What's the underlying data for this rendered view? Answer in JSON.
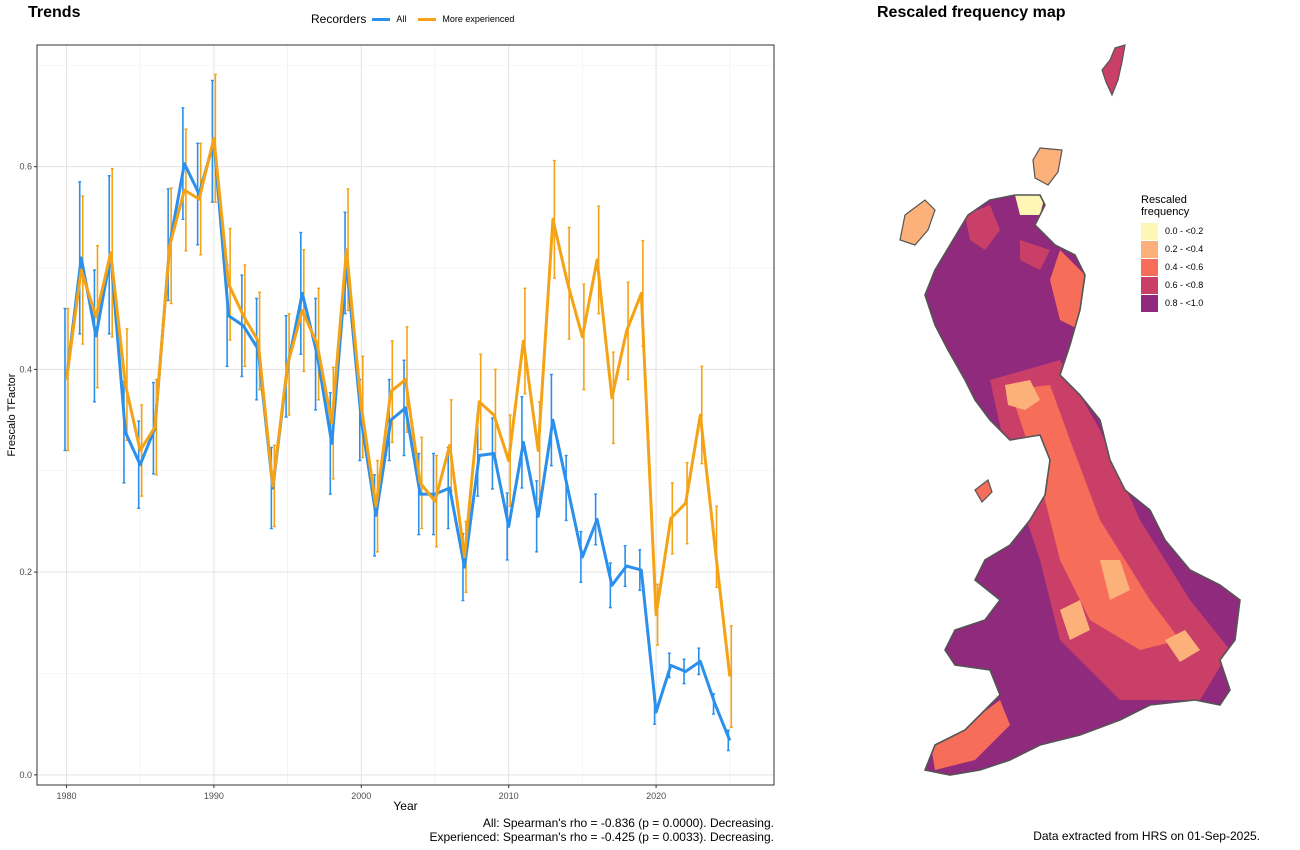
{
  "trends_title": "Trends",
  "map_title": "Rescaled frequency map",
  "legend": {
    "title": "Recorders",
    "items": [
      {
        "label": "All",
        "color": "#2b8fec"
      },
      {
        "label": "More experienced",
        "color": "#f5a316"
      }
    ]
  },
  "chart_data": {
    "type": "line",
    "xlabel": "Year",
    "ylabel": "Frescalo TFactor",
    "xlim": [
      1978,
      2028
    ],
    "ylim": [
      -0.01,
      0.72
    ],
    "x_ticks": [
      1980,
      1990,
      2000,
      2010,
      2020
    ],
    "y_ticks": [
      0.0,
      0.2,
      0.4,
      0.6
    ],
    "grid": true,
    "legend_position": "top",
    "x": [
      1980,
      1981,
      1982,
      1983,
      1984,
      1985,
      1986,
      1987,
      1988,
      1989,
      1990,
      1991,
      1992,
      1993,
      1994,
      1995,
      1996,
      1997,
      1998,
      1999,
      2000,
      2001,
      2002,
      2003,
      2004,
      2005,
      2006,
      2007,
      2008,
      2009,
      2010,
      2011,
      2012,
      2013,
      2014,
      2015,
      2016,
      2017,
      2018,
      2019,
      2020,
      2021,
      2022,
      2023,
      2024,
      2025
    ],
    "series": [
      {
        "name": "All",
        "color": "#2b8fec",
        "values": [
          0.39,
          0.51,
          0.433,
          0.513,
          0.338,
          0.306,
          0.342,
          0.523,
          0.603,
          0.573,
          0.625,
          0.453,
          0.443,
          0.42,
          0.283,
          0.403,
          0.475,
          0.415,
          0.327,
          0.505,
          0.35,
          0.256,
          0.35,
          0.362,
          0.277,
          0.277,
          0.283,
          0.205,
          0.315,
          0.317,
          0.245,
          0.328,
          0.255,
          0.35,
          0.283,
          0.215,
          0.252,
          0.187,
          0.206,
          0.202,
          0.062,
          0.108,
          0.102,
          0.112,
          0.07,
          0.034
        ],
        "err": [
          0.07,
          0.075,
          0.065,
          0.078,
          0.05,
          0.043,
          0.045,
          0.055,
          0.055,
          0.05,
          0.06,
          0.05,
          0.05,
          0.05,
          0.04,
          0.05,
          0.06,
          0.055,
          0.05,
          0.05,
          0.04,
          0.04,
          0.04,
          0.047,
          0.04,
          0.04,
          0.04,
          0.033,
          0.04,
          0.035,
          0.033,
          0.045,
          0.035,
          0.045,
          0.032,
          0.025,
          0.025,
          0.022,
          0.02,
          0.02,
          0.012,
          0.012,
          0.012,
          0.013,
          0.01,
          0.01
        ]
      },
      {
        "name": "More experienced",
        "color": "#f5a316",
        "values": [
          0.39,
          0.498,
          0.452,
          0.515,
          0.385,
          0.32,
          0.343,
          0.522,
          0.577,
          0.568,
          0.628,
          0.484,
          0.453,
          0.428,
          0.285,
          0.405,
          0.458,
          0.425,
          0.347,
          0.518,
          0.363,
          0.265,
          0.378,
          0.39,
          0.288,
          0.27,
          0.325,
          0.215,
          0.368,
          0.355,
          0.31,
          0.428,
          0.32,
          0.548,
          0.485,
          0.432,
          0.508,
          0.372,
          0.438,
          0.475,
          0.158,
          0.253,
          0.268,
          0.355,
          0.225,
          0.097
        ],
        "err": [
          0.07,
          0.073,
          0.07,
          0.083,
          0.055,
          0.045,
          0.047,
          0.057,
          0.06,
          0.055,
          0.063,
          0.055,
          0.05,
          0.048,
          0.04,
          0.05,
          0.06,
          0.055,
          0.055,
          0.06,
          0.05,
          0.045,
          0.05,
          0.052,
          0.045,
          0.045,
          0.045,
          0.035,
          0.047,
          0.045,
          0.045,
          0.052,
          0.048,
          0.058,
          0.055,
          0.052,
          0.053,
          0.045,
          0.048,
          0.052,
          0.03,
          0.035,
          0.04,
          0.048,
          0.04,
          0.05
        ]
      }
    ]
  },
  "stats": {
    "line1": "All: Spearman's rho = -0.836 (p = 0.0000). Decreasing.",
    "line2": "Experienced: Spearman's rho = -0.425 (p = 0.0033). Decreasing."
  },
  "map_legend": {
    "title_line1": "Rescaled",
    "title_line2": "frequency",
    "items": [
      {
        "label": "0.0 - <0.2",
        "color": "#fdf6b4"
      },
      {
        "label": "0.2 - <0.4",
        "color": "#fcb07a"
      },
      {
        "label": "0.4 - <0.6",
        "color": "#f66e5a"
      },
      {
        "label": "0.6 - <0.8",
        "color": "#c93f68"
      },
      {
        "label": "0.8 - <1.0",
        "color": "#8f2a7c"
      }
    ]
  },
  "data_note": "Data extracted from HRS on 01-Sep-2025."
}
